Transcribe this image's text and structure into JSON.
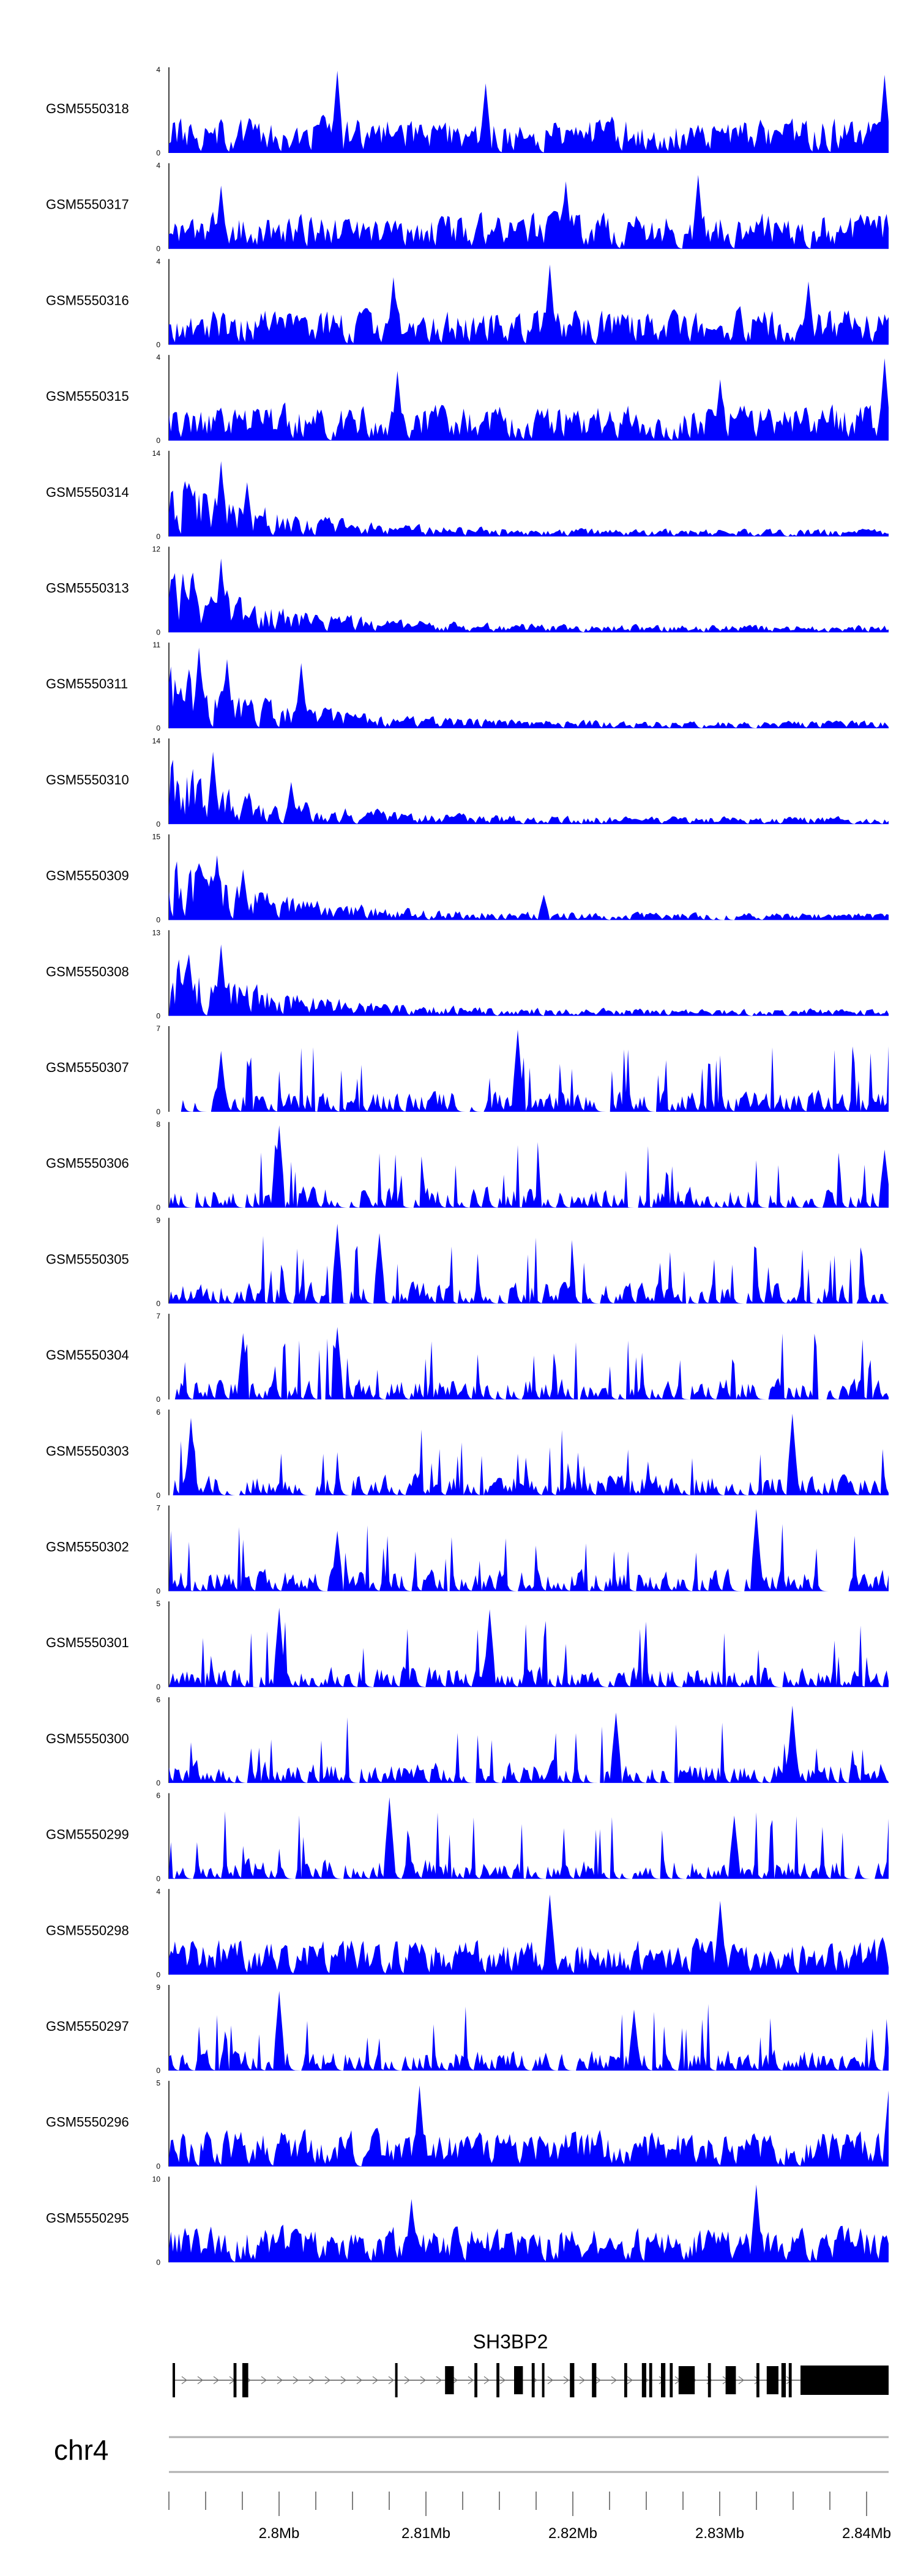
{
  "chart_data": {
    "type": "area",
    "title": "",
    "xlabel": "",
    "ylabel": "",
    "grid": false,
    "colors": {
      "signal": "#0000ff",
      "gene": "#000000",
      "axis": "#000000"
    },
    "xlim": [
      2.7925,
      2.8415
    ],
    "x_unit": "Mb",
    "tracks": [
      {
        "name": "GSM5550318",
        "ymax": "4",
        "max": 4,
        "profile": "flat",
        "peaks": [
          [
            2.804,
            3.9
          ],
          [
            2.8412,
            3.7
          ],
          [
            2.814,
            3.3
          ]
        ]
      },
      {
        "name": "GSM5550317",
        "ymax": "4",
        "max": 4,
        "profile": "flat",
        "peaks": [
          [
            2.8285,
            3.5
          ],
          [
            2.8195,
            3.2
          ],
          [
            2.796,
            3.0
          ]
        ]
      },
      {
        "name": "GSM5550316",
        "ymax": "4",
        "max": 4,
        "profile": "flat",
        "peaks": [
          [
            2.8185,
            3.8
          ],
          [
            2.8078,
            3.2
          ],
          [
            2.836,
            3.0
          ]
        ]
      },
      {
        "name": "GSM5550315",
        "ymax": "4",
        "max": 4,
        "profile": "flat",
        "peaks": [
          [
            2.8412,
            3.9
          ],
          [
            2.808,
            3.3
          ],
          [
            2.83,
            2.9
          ]
        ]
      },
      {
        "name": "GSM5550314",
        "ymax": "14",
        "max": 14,
        "profile": "decay",
        "peaks": [
          [
            2.796,
            12.5
          ],
          [
            2.7978,
            9.0
          ]
        ]
      },
      {
        "name": "GSM5550313",
        "ymax": "12",
        "max": 12,
        "profile": "decay",
        "peaks": [
          [
            2.796,
            10.5
          ],
          [
            2.7942,
            8.5
          ]
        ]
      },
      {
        "name": "GSM5550311",
        "ymax": "11",
        "max": 11,
        "profile": "decay",
        "peaks": [
          [
            2.7945,
            10.5
          ],
          [
            2.7965,
            9.0
          ],
          [
            2.8015,
            8.5
          ]
        ]
      },
      {
        "name": "GSM5550310",
        "ymax": "14",
        "max": 14,
        "profile": "decay",
        "peaks": [
          [
            2.7955,
            12.0
          ],
          [
            2.8008,
            7.0
          ]
        ]
      },
      {
        "name": "GSM5550309",
        "ymax": "15",
        "max": 15,
        "profile": "decay",
        "peaks": [
          [
            2.7958,
            11.5
          ],
          [
            2.7975,
            9.0
          ],
          [
            2.818,
            4.5
          ]
        ]
      },
      {
        "name": "GSM5550308",
        "ymax": "13",
        "max": 13,
        "profile": "decay",
        "peaks": [
          [
            2.796,
            11.0
          ],
          [
            2.7938,
            9.5
          ]
        ]
      },
      {
        "name": "GSM5550307",
        "ymax": "7",
        "max": 7,
        "profile": "spiky",
        "peaks": [
          [
            2.8162,
            6.8
          ],
          [
            2.796,
            5.0
          ]
        ]
      },
      {
        "name": "GSM5550306",
        "ymax": "8",
        "max": 8,
        "profile": "spiky",
        "peaks": [
          [
            2.8,
            7.8
          ],
          [
            2.8412,
            5.5
          ]
        ]
      },
      {
        "name": "GSM5550305",
        "ymax": "9",
        "max": 9,
        "profile": "spiky",
        "peaks": [
          [
            2.804,
            8.5
          ],
          [
            2.8068,
            7.5
          ]
        ]
      },
      {
        "name": "GSM5550304",
        "ymax": "7",
        "max": 7,
        "profile": "spiky",
        "peaks": [
          [
            2.7975,
            5.5
          ],
          [
            2.804,
            6.0
          ]
        ]
      },
      {
        "name": "GSM5550303",
        "ymax": "6",
        "max": 6,
        "profile": "spiky",
        "peaks": [
          [
            2.835,
            5.8
          ],
          [
            2.794,
            5.5
          ]
        ]
      },
      {
        "name": "GSM5550302",
        "ymax": "7",
        "max": 7,
        "profile": "spiky",
        "peaks": [
          [
            2.8325,
            6.8
          ],
          [
            2.804,
            5.0
          ]
        ]
      },
      {
        "name": "GSM5550301",
        "ymax": "5",
        "max": 5,
        "profile": "spiky",
        "peaks": [
          [
            2.8,
            4.7
          ],
          [
            2.8143,
            4.6
          ]
        ]
      },
      {
        "name": "GSM5550300",
        "ymax": "6",
        "max": 6,
        "profile": "spiky",
        "peaks": [
          [
            2.835,
            5.5
          ],
          [
            2.823,
            5.0
          ]
        ]
      },
      {
        "name": "GSM5550299",
        "ymax": "6",
        "max": 6,
        "profile": "spiky",
        "peaks": [
          [
            2.8075,
            5.8
          ],
          [
            2.831,
            4.5
          ]
        ]
      },
      {
        "name": "GSM5550298",
        "ymax": "4",
        "max": 4,
        "profile": "flat",
        "peaks": [
          [
            2.8185,
            3.8
          ],
          [
            2.83,
            3.5
          ]
        ]
      },
      {
        "name": "GSM5550297",
        "ymax": "9",
        "max": 9,
        "profile": "spiky",
        "peaks": [
          [
            2.8,
            8.5
          ],
          [
            2.8242,
            6.5
          ]
        ]
      },
      {
        "name": "GSM5550296",
        "ymax": "5",
        "max": 5,
        "profile": "flat",
        "peaks": [
          [
            2.8095,
            4.8
          ],
          [
            2.8415,
            4.5
          ]
        ]
      },
      {
        "name": "GSM5550295",
        "ymax": "10",
        "max": 10,
        "profile": "flat",
        "peaks": [
          [
            2.8325,
            9.2
          ],
          [
            2.809,
            7.5
          ]
        ]
      }
    ],
    "gene": {
      "name": "SH3BP2",
      "strand": "+",
      "exons": [
        [
          2.79275,
          2.7929
        ],
        [
          2.7969,
          2.7971
        ],
        [
          2.7975,
          2.7979
        ],
        [
          2.8079,
          2.808
        ],
        [
          2.8113,
          2.8119
        ],
        [
          2.8133,
          2.8135
        ],
        [
          2.8148,
          2.815
        ],
        [
          2.816,
          2.8166
        ],
        [
          2.8172,
          2.8174
        ],
        [
          2.8179,
          2.818
        ],
        [
          2.8198,
          2.8201
        ],
        [
          2.8213,
          2.8216
        ],
        [
          2.8235,
          2.8237
        ],
        [
          2.8247,
          2.825
        ],
        [
          2.8252,
          2.8254
        ],
        [
          2.826,
          2.8263
        ],
        [
          2.8266,
          2.8268
        ],
        [
          2.8272,
          2.8283
        ],
        [
          2.8292,
          2.8294
        ],
        [
          2.8304,
          2.8311
        ],
        [
          2.8325,
          2.8327
        ],
        [
          2.8332,
          2.834
        ],
        [
          2.8342,
          2.8345
        ],
        [
          2.8347,
          2.8349
        ],
        [
          2.8355,
          2.8415
        ]
      ]
    },
    "chromosome": "chr4",
    "ticks": [
      "2.8Mb",
      "2.81Mb",
      "2.82Mb",
      "2.83Mb",
      "2.84Mb"
    ]
  }
}
